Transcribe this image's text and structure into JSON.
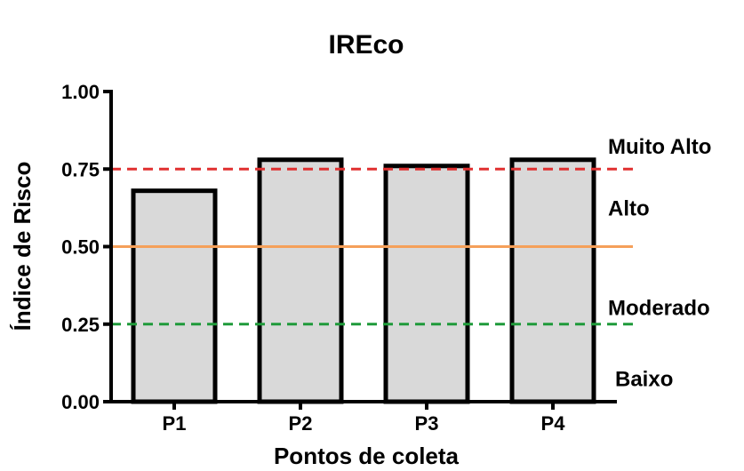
{
  "chart_data": {
    "type": "bar",
    "title": "IREco",
    "xlabel": "Pontos de coleta",
    "ylabel": "Índice de Risco",
    "categories": [
      "P1",
      "P2",
      "P3",
      "P4"
    ],
    "values": [
      0.68,
      0.78,
      0.76,
      0.78
    ],
    "ylim": [
      0,
      1
    ],
    "yticks": [
      "0.00",
      "0.25",
      "0.50",
      "0.75",
      "1.00"
    ],
    "bar_fill": "#d9d9d9",
    "bar_stroke": "#000000",
    "reference_lines": [
      {
        "value": 0.75,
        "color": "#e03030",
        "style": "dashed"
      },
      {
        "value": 0.5,
        "color": "#f5a05a",
        "style": "solid"
      },
      {
        "value": 0.25,
        "color": "#1f9a3a",
        "style": "dashed"
      }
    ],
    "zone_labels": [
      {
        "label": "Muito Alto",
        "value": 0.8
      },
      {
        "label": "Alto",
        "value": 0.6
      },
      {
        "label": "Moderado",
        "value": 0.28
      },
      {
        "label": "Baixo",
        "value": 0.05
      }
    ],
    "grid": false
  }
}
